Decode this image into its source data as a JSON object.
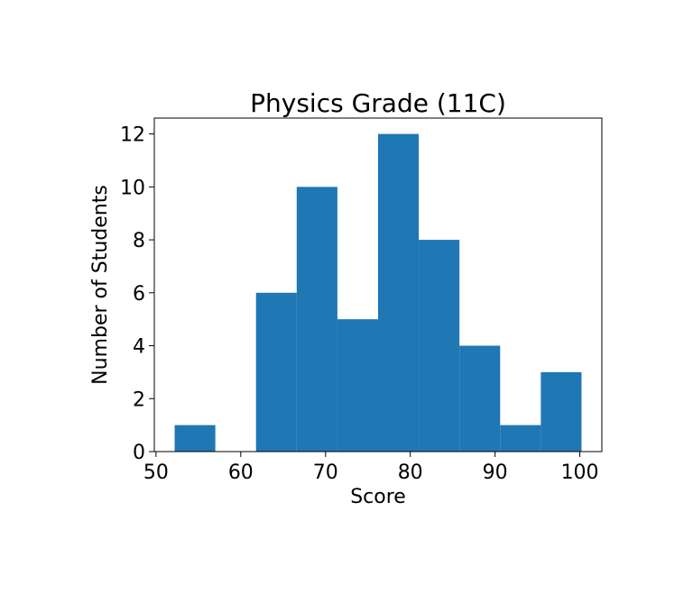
{
  "chart_data": {
    "type": "bar",
    "subtype": "histogram",
    "title": "Physics Grade (11C)",
    "xlabel": "Score",
    "ylabel": "Number of Students",
    "bin_edges": [
      52.2,
      57.0,
      61.8,
      66.6,
      71.4,
      76.2,
      81.0,
      85.8,
      90.6,
      95.4,
      100.2
    ],
    "counts": [
      1,
      0,
      6,
      10,
      5,
      12,
      8,
      4,
      1,
      3
    ],
    "xlim": [
      49.8,
      102.6
    ],
    "ylim": [
      0,
      12.6
    ],
    "xticks": [
      50,
      60,
      70,
      80,
      90,
      100
    ],
    "yticks": [
      0,
      2,
      4,
      6,
      8,
      10,
      12
    ],
    "bar_color": "#1f77b4",
    "grid": false
  }
}
